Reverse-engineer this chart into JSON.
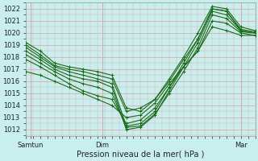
{
  "xlabel": "Pression niveau de la mer( hPa )",
  "ylim": [
    1011.5,
    1022.5
  ],
  "xlim": [
    0,
    96
  ],
  "yticks": [
    1012,
    1013,
    1014,
    1015,
    1016,
    1017,
    1018,
    1019,
    1020,
    1021,
    1022
  ],
  "xtick_positions": [
    2,
    32,
    90
  ],
  "xtick_labels": [
    "Samtun",
    "Dim",
    "Mar"
  ],
  "bg_color": "#c8eeee",
  "grid_color": "#ddaaaa",
  "line_color": "#1a6b1a",
  "series": [
    {
      "x": [
        0,
        6,
        12,
        18,
        24,
        30,
        36,
        42,
        48,
        54,
        60,
        66,
        72,
        78,
        84,
        90,
        96
      ],
      "y": [
        1018.8,
        1018.0,
        1017.2,
        1016.8,
        1016.5,
        1016.2,
        1015.8,
        1012.3,
        1012.5,
        1013.5,
        1015.5,
        1017.5,
        1019.5,
        1022.0,
        1021.8,
        1020.2,
        1020.0
      ]
    },
    {
      "x": [
        0,
        6,
        12,
        18,
        24,
        30,
        36,
        42,
        48,
        54,
        60,
        66,
        72,
        78,
        84,
        90,
        96
      ],
      "y": [
        1018.5,
        1017.8,
        1017.0,
        1016.5,
        1016.2,
        1016.0,
        1015.5,
        1012.0,
        1012.2,
        1013.2,
        1015.2,
        1017.2,
        1019.2,
        1021.8,
        1021.5,
        1020.2,
        1020.0
      ]
    },
    {
      "x": [
        0,
        6,
        12,
        18,
        24,
        30,
        36,
        42,
        48,
        54,
        60,
        66,
        72,
        78,
        84,
        90,
        96
      ],
      "y": [
        1018.2,
        1017.5,
        1016.8,
        1016.2,
        1015.8,
        1015.5,
        1015.0,
        1012.2,
        1012.3,
        1013.3,
        1015.0,
        1016.8,
        1018.8,
        1021.5,
        1021.2,
        1020.1,
        1020.0
      ]
    },
    {
      "x": [
        0,
        6,
        12,
        18,
        24,
        30,
        36,
        42,
        48,
        54,
        60,
        66,
        72,
        78,
        84,
        90,
        96
      ],
      "y": [
        1017.8,
        1017.2,
        1016.5,
        1015.8,
        1015.2,
        1014.8,
        1014.5,
        1012.5,
        1012.8,
        1013.8,
        1015.5,
        1017.2,
        1018.5,
        1021.0,
        1020.8,
        1020.0,
        1019.8
      ]
    },
    {
      "x": [
        0,
        6,
        12,
        18,
        24,
        30,
        36,
        42,
        48,
        54,
        60,
        66,
        72,
        78,
        84,
        90,
        96
      ],
      "y": [
        1016.8,
        1016.5,
        1016.0,
        1015.5,
        1015.0,
        1014.5,
        1014.0,
        1013.0,
        1013.2,
        1014.2,
        1015.8,
        1017.2,
        1018.5,
        1020.5,
        1020.2,
        1019.8,
        1019.8
      ]
    },
    {
      "x": [
        0,
        6,
        12,
        18,
        24,
        30,
        36,
        42,
        48,
        54,
        60,
        66,
        72,
        78,
        84,
        90,
        96
      ],
      "y": [
        1019.2,
        1018.5,
        1017.5,
        1017.2,
        1017.0,
        1016.8,
        1016.5,
        1013.8,
        1013.5,
        1014.5,
        1016.2,
        1018.0,
        1020.0,
        1022.2,
        1022.0,
        1020.5,
        1020.2
      ]
    },
    {
      "x": [
        0,
        6,
        12,
        18,
        24,
        30,
        36,
        42,
        48,
        54,
        60,
        66,
        72,
        78,
        84,
        90,
        96
      ],
      "y": [
        1019.0,
        1018.2,
        1017.3,
        1017.0,
        1016.8,
        1016.5,
        1016.2,
        1013.5,
        1013.8,
        1014.5,
        1016.0,
        1017.8,
        1019.5,
        1022.0,
        1021.8,
        1020.3,
        1020.1
      ]
    }
  ]
}
